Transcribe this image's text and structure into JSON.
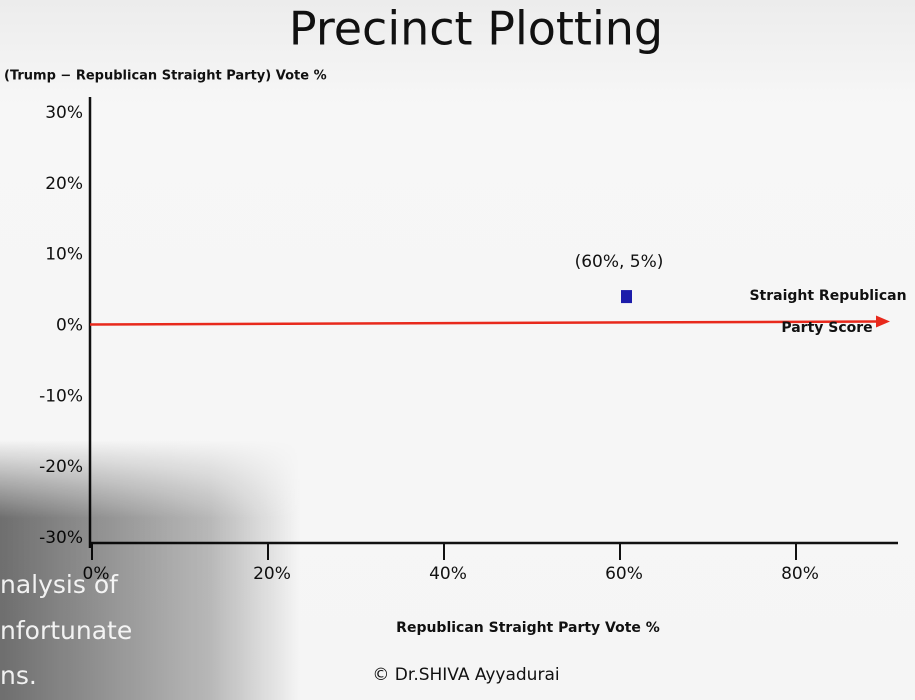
{
  "chart_data": {
    "type": "scatter",
    "title": "Precinct Plotting",
    "ylabel": "(Trump − Republican Straight Party) Vote %",
    "xlabel": "Republican Straight Party Vote %",
    "series": [
      {
        "name": null,
        "color": "#1c1caa",
        "x": [
          60
        ],
        "values": [
          5
        ]
      }
    ],
    "annotations": [
      "(60%, 5%)"
    ],
    "zero_line": {
      "color": "#e8291c",
      "label": [
        "Straight Republican",
        "Party Score"
      ]
    },
    "xlim": [
      0,
      90
    ],
    "ylim": [
      -30,
      30
    ],
    "xticks": [
      {
        "value": 0,
        "label": "0%"
      },
      {
        "value": 20,
        "label": "20%"
      },
      {
        "value": 40,
        "label": "40%"
      },
      {
        "value": 60,
        "label": "60%"
      },
      {
        "value": 80,
        "label": "80%"
      }
    ],
    "yticks": [
      {
        "value": 30,
        "label": "30%"
      },
      {
        "value": 20,
        "label": "20%"
      },
      {
        "value": 10,
        "label": "10%"
      },
      {
        "value": 0,
        "label": "0%"
      },
      {
        "value": -10,
        "label": "-10%"
      },
      {
        "value": -20,
        "label": "-20%"
      },
      {
        "value": -30,
        "label": "-30%"
      }
    ],
    "grid": false
  },
  "caption": [
    "nalysis of",
    "nfortunate",
    "ns."
  ],
  "copyright": "© Dr.SHIVA Ayyadurai"
}
